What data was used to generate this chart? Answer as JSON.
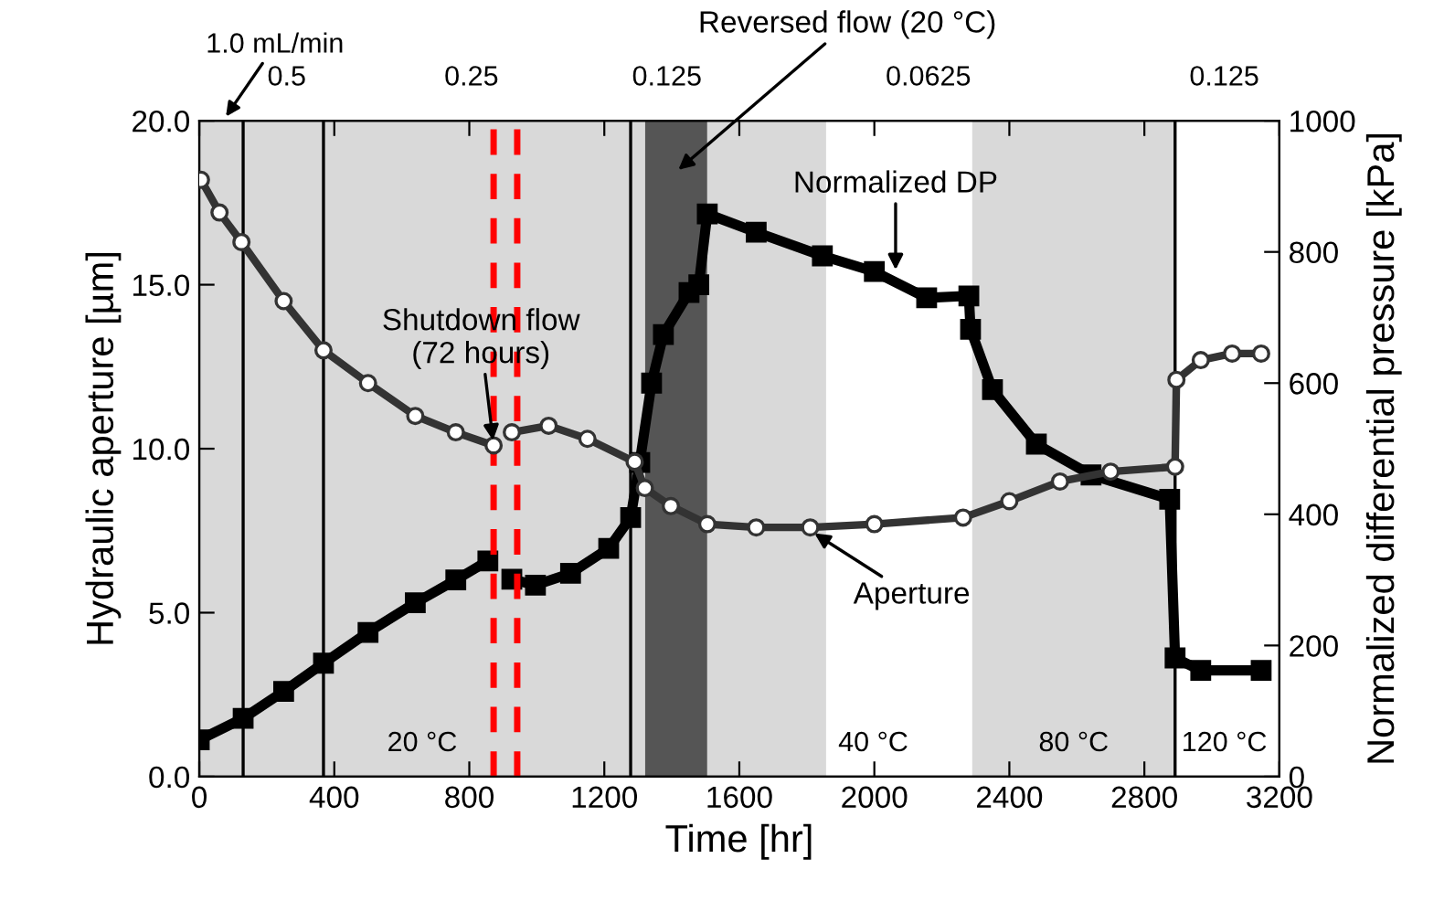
{
  "chart_data": {
    "type": "line",
    "xlabel": "Time [hr]",
    "ylabel": "Hydraulic aperture [µm]",
    "y2label": "Normalized differential pressure [kPa]",
    "xlim": [
      0,
      3200
    ],
    "xticks": [
      0,
      400,
      800,
      1200,
      1600,
      2000,
      2400,
      2800,
      3200
    ],
    "ylim": [
      0,
      20
    ],
    "yticks": [
      {
        "value": 0,
        "label": "0.0"
      },
      {
        "value": 5,
        "label": "5.0"
      },
      {
        "value": 10,
        "label": "10.0"
      },
      {
        "value": 15,
        "label": "15.0"
      },
      {
        "value": 20,
        "label": "20.0"
      }
    ],
    "y2lim": [
      0,
      1000
    ],
    "y2ticks": [
      0,
      200,
      400,
      600,
      800,
      1000
    ],
    "series": [
      {
        "color": "#333333",
        "marker": "circle",
        "x": [
          5,
          60,
          125,
          250,
          368,
          500,
          640,
          760,
          872,
          900,
          926,
          1035,
          1150,
          1290,
          1320,
          1397,
          1505,
          1650,
          1810,
          2000,
          2263,
          2400,
          2550,
          2700,
          2891,
          2895,
          2967,
          3060,
          3146
        ],
        "values": [
          18.2,
          17.2,
          16.3,
          14.5,
          13.0,
          12.0,
          11.0,
          10.5,
          10.1,
          null,
          10.5,
          10.7,
          10.3,
          9.6,
          8.8,
          8.25,
          7.7,
          7.6,
          7.6,
          7.7,
          7.9,
          8.4,
          9.0,
          9.3,
          9.45,
          12.1,
          12.7,
          12.9,
          12.9
        ]
      },
      {
        "color": "#000000",
        "marker": "square",
        "axis": "y2",
        "x": [
          0,
          130,
          250,
          368,
          500,
          640,
          760,
          855,
          900,
          926,
          996,
          1100,
          1213,
          1278,
          1305,
          1340,
          1375,
          1451,
          1480,
          1505,
          1650,
          1846,
          2000,
          2155,
          2280,
          2285,
          2350,
          2480,
          2642,
          2875,
          2891,
          2967,
          3146
        ],
        "values": [
          56,
          89,
          130,
          173,
          220,
          265,
          300,
          329,
          null,
          301,
          292,
          310,
          348,
          395,
          479,
          600,
          674,
          738,
          750,
          858,
          830,
          794,
          770,
          730,
          733,
          682,
          590,
          507,
          460,
          423,
          181,
          162,
          162
        ]
      }
    ],
    "bands": [
      {
        "axis": "x",
        "from": 0,
        "to": 1321,
        "color": "#d9d9d9",
        "label": "20 °C"
      },
      {
        "axis": "x",
        "from": 1321,
        "to": 1505,
        "color": "#555555"
      },
      {
        "axis": "x",
        "from": 1505,
        "to": 1857,
        "color": "#d9d9d9"
      },
      {
        "axis": "x",
        "from": 2290,
        "to": 2891,
        "color": "#d9d9d9",
        "label": "80 °C"
      }
    ],
    "ref_lines": [
      {
        "axis": "x",
        "value": 130,
        "color": "#000000",
        "line_style": "solid"
      },
      {
        "axis": "x",
        "value": 368,
        "color": "#000000",
        "line_style": "solid"
      },
      {
        "axis": "x",
        "value": 1278,
        "color": "#000000",
        "line_style": "solid"
      },
      {
        "axis": "x",
        "value": 2891,
        "color": "#000000",
        "line_style": "solid"
      },
      {
        "axis": "x",
        "value": 872,
        "color": "#ff0000",
        "line_style": "dashed"
      },
      {
        "axis": "x",
        "value": 942,
        "color": "#ff0000",
        "line_style": "dashed"
      }
    ],
    "annotations": [
      {
        "text": "Shutdown flow\n(72 hours)",
        "x": 872,
        "y": 10.1
      },
      {
        "text": "Normalized DP",
        "x": 2063,
        "y": 15.3
      },
      {
        "text": "Aperture",
        "x": 1810,
        "y": 7.5
      },
      "1.0 mL/min",
      "0.5",
      "0.25",
      "0.125",
      "Reversed flow (20 °C)",
      "0.0625",
      "0.125",
      "40 °C",
      "120 °C"
    ],
    "legend": false,
    "grid": false
  }
}
